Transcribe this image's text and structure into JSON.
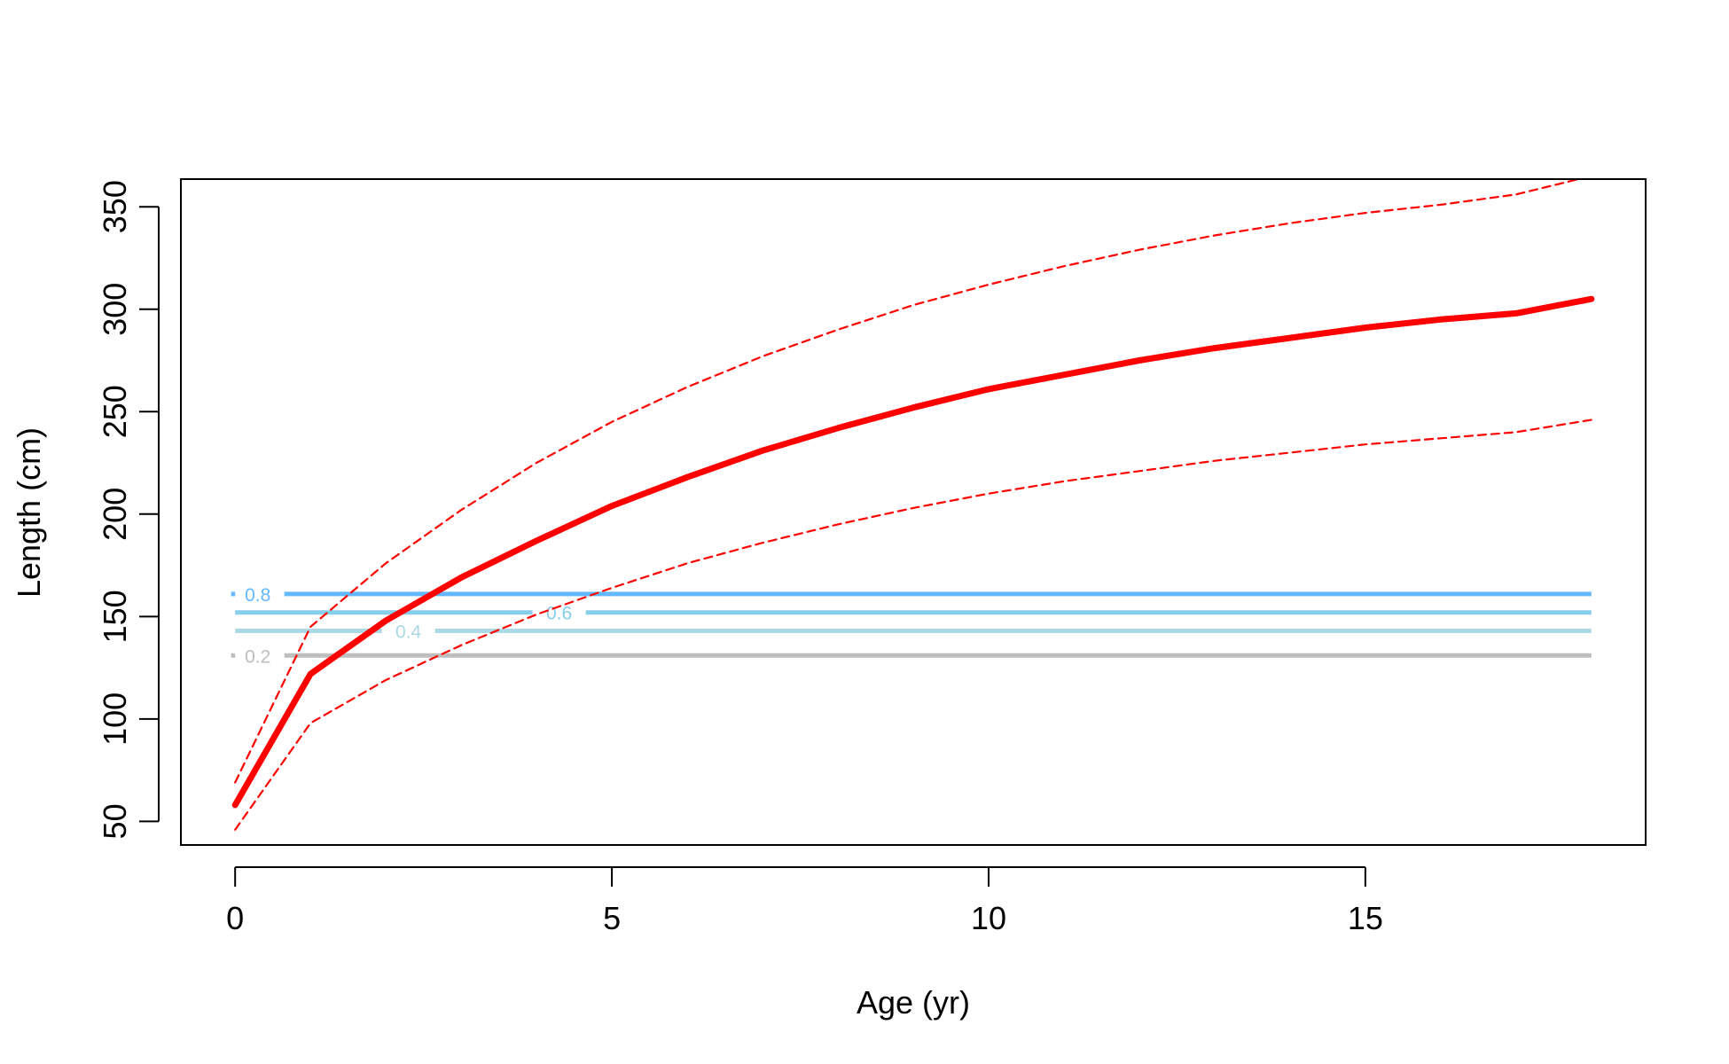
{
  "chart_data": {
    "type": "line",
    "title": "",
    "xlabel": "Age (yr)",
    "ylabel": "Length (cm)",
    "xlim": [
      -0.72,
      18.72
    ],
    "ylim": [
      38.5,
      363.5
    ],
    "x_ticks": [
      0,
      5,
      10,
      15
    ],
    "x_tick_labels": [
      "0",
      "5",
      "10",
      "15"
    ],
    "y_ticks": [
      50,
      100,
      150,
      200,
      250,
      300,
      350
    ],
    "y_tick_labels": [
      "50",
      "100",
      "150",
      "200",
      "250",
      "300",
      "350"
    ],
    "grid": false,
    "legend": "none",
    "x": [
      0,
      1,
      2,
      3,
      4,
      5,
      6,
      7,
      8,
      9,
      10,
      11,
      12,
      13,
      14,
      15,
      16,
      17,
      18
    ],
    "series": [
      {
        "role": "mean",
        "style": "solid",
        "color": "#ff0000",
        "values": [
          58,
          122,
          148,
          169,
          187,
          204,
          218,
          231,
          242,
          252,
          261,
          268,
          275,
          281,
          286,
          291,
          295,
          298,
          305
        ]
      },
      {
        "role": "upper",
        "style": "dashed",
        "color": "#ff0000",
        "values": [
          69,
          145,
          176,
          202,
          225,
          245,
          262,
          277,
          290,
          302,
          312,
          321,
          329,
          336,
          342,
          347,
          351,
          356,
          365
        ]
      },
      {
        "role": "lower",
        "style": "dashed",
        "color": "#ff0000",
        "values": [
          46,
          98,
          119,
          136,
          151,
          164,
          176,
          186,
          195,
          203,
          210,
          216,
          221,
          226,
          230,
          234,
          237,
          240,
          246
        ]
      }
    ],
    "reference_lines": [
      {
        "label": "0.8",
        "y": 161,
        "x_start": 0,
        "x_end": 18,
        "label_x": 0.3,
        "color": "#63b8ff"
      },
      {
        "label": "0.6",
        "y": 152,
        "x_start": 0,
        "x_end": 18,
        "label_x": 4.3,
        "color": "#87ceeb"
      },
      {
        "label": "0.4",
        "y": 143,
        "x_start": 0,
        "x_end": 18,
        "label_x": 2.3,
        "color": "#add8e6"
      },
      {
        "label": "0.2",
        "y": 131,
        "x_start": 0,
        "x_end": 18,
        "label_x": 0.3,
        "color": "#bebebe"
      }
    ]
  }
}
